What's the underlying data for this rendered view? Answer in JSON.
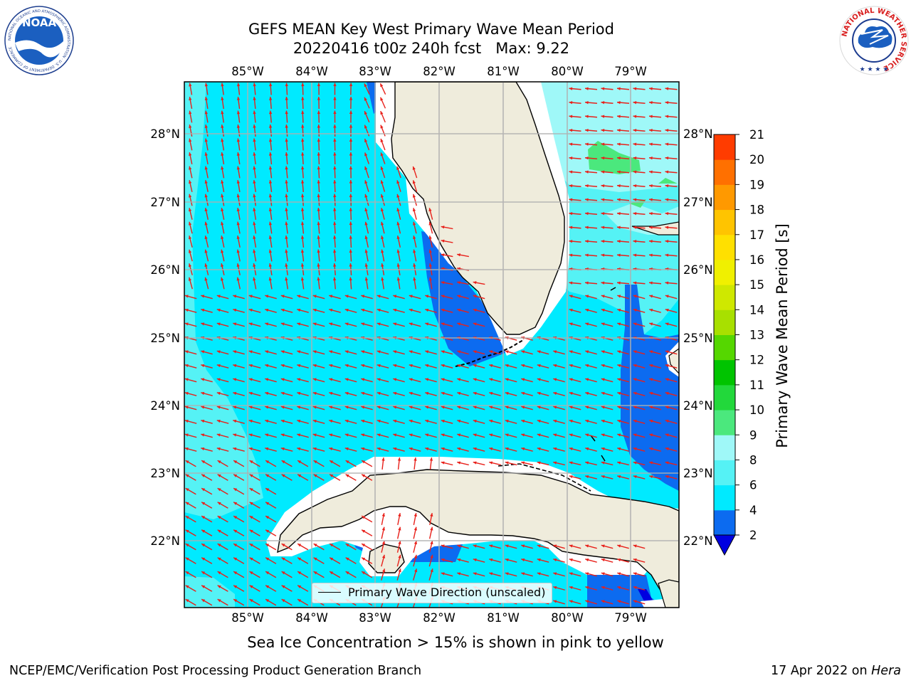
{
  "title": {
    "line1": "GEFS MEAN Key West Primary Wave Mean Period",
    "line2": "20220416 t00z 240h fcst   Max: 9.22"
  },
  "map": {
    "lon_labels": [
      "85°W",
      "84°W",
      "83°W",
      "82°W",
      "81°W",
      "80°W",
      "79°W"
    ],
    "lat_labels": [
      "28°N",
      "27°N",
      "26°N",
      "25°N",
      "24°N",
      "23°N",
      "22°N"
    ],
    "legend_label": "Primary Wave Direction (unscaled)"
  },
  "colorbar": {
    "label": "Primary Wave Mean Period [s]",
    "ticks": [
      "2",
      "4",
      "6",
      "8",
      "9",
      "10",
      "11",
      "12",
      "13",
      "14",
      "15",
      "16",
      "17",
      "18",
      "19",
      "20",
      "21"
    ],
    "colors": [
      "#0c6bf0",
      "#00eaff",
      "#55f2f5",
      "#9ff8f8",
      "#4be87d",
      "#22d83b",
      "#00c400",
      "#55d700",
      "#a8e000",
      "#cfe800",
      "#f0f000",
      "#ffe000",
      "#ffc400",
      "#ff9900",
      "#ff7000",
      "#ff3c00",
      "#ff0000"
    ],
    "under_color": "#0000e0"
  },
  "caption": "Sea Ice Concentration > 15% is shown in pink to yellow",
  "footer": {
    "left": "NCEP/EMC/Verification Post Processing Product Generation Branch",
    "right_prefix": "17 Apr 2022 on ",
    "right_host": "Hera"
  },
  "logos": {
    "noaa_text": "NOAA",
    "noaa_ring": "NATIONAL OCEANIC AND ATMOSPHERIC ADMINISTRATION · U.S. DEPARTMENT OF COMMERCE",
    "nws_ring": "NATIONAL WEATHER SERVICE"
  },
  "colors": {
    "land": "#efecdc",
    "sea_main": "#00eaff",
    "sea_light": "#55f2f5",
    "sea_dark": "#0c6bf0",
    "sea_deep": "#0000e0",
    "arrow": "#e8201a"
  }
}
